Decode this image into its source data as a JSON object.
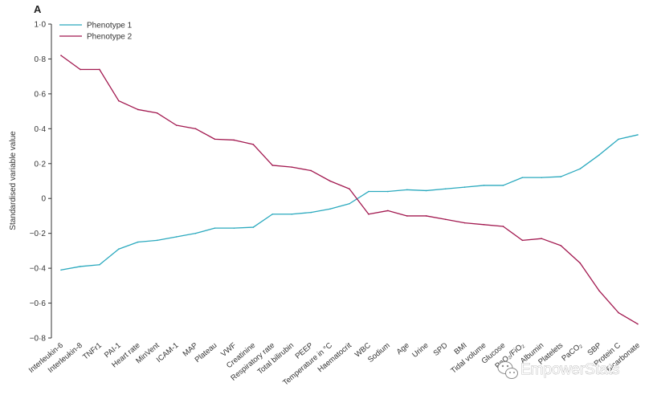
{
  "chart_data": {
    "type": "line",
    "panel_label": "A",
    "ylabel": "Standardised variable value",
    "ylim": [
      -0.8,
      1.0
    ],
    "y_ticks": [
      "1·0",
      "0·8",
      "0·6",
      "0·4",
      "0·2",
      "0",
      "−0·2",
      "−0·4",
      "−0·6",
      "−0·8"
    ],
    "y_tick_values": [
      1.0,
      0.8,
      0.6,
      0.4,
      0.2,
      0,
      -0.2,
      -0.4,
      -0.6,
      -0.8
    ],
    "grid": false,
    "legend_position": "top-left",
    "categories": [
      "Interleukin-6",
      "Interleukin-8",
      "TNFr1",
      "PAI-1",
      "Heart rate",
      "MinVent",
      "ICAM-1",
      "MAP",
      "Plateau",
      "VWF",
      "Creatinine",
      "Respiratory rate",
      "Total bilirubin",
      "PEEP",
      "Temperature in °C",
      "Haematocrit",
      "WBC",
      "Sodium",
      "Age",
      "Urine",
      "SPD",
      "BMI",
      "Tidal volume",
      "Glucose",
      "PaO₂/FiO₂",
      "Albumin",
      "Platelets",
      "PaCO₂",
      "SBP",
      "Protein C",
      "Bicarbonate"
    ],
    "series": [
      {
        "name": "Phenotype 1",
        "color": "#2aa9be",
        "values": [
          -0.41,
          -0.39,
          -0.38,
          -0.29,
          -0.25,
          -0.24,
          -0.22,
          -0.2,
          -0.17,
          -0.17,
          -0.165,
          -0.09,
          -0.09,
          -0.08,
          -0.06,
          -0.03,
          0.04,
          0.04,
          0.05,
          0.045,
          0.055,
          0.065,
          0.075,
          0.075,
          0.12,
          0.12,
          0.125,
          0.17,
          0.25,
          0.34,
          0.365
        ]
      },
      {
        "name": "Phenotype 2",
        "color": "#a2184f",
        "values": [
          0.82,
          0.74,
          0.74,
          0.56,
          0.51,
          0.49,
          0.42,
          0.4,
          0.34,
          0.335,
          0.31,
          0.19,
          0.18,
          0.16,
          0.1,
          0.055,
          -0.09,
          -0.07,
          -0.1,
          -0.1,
          -0.12,
          -0.14,
          -0.15,
          -0.16,
          -0.24,
          -0.23,
          -0.27,
          -0.37,
          -0.53,
          -0.655,
          -0.72
        ]
      }
    ]
  },
  "watermark": {
    "text": "EmpowerStats",
    "icon": "wechat-icon"
  }
}
